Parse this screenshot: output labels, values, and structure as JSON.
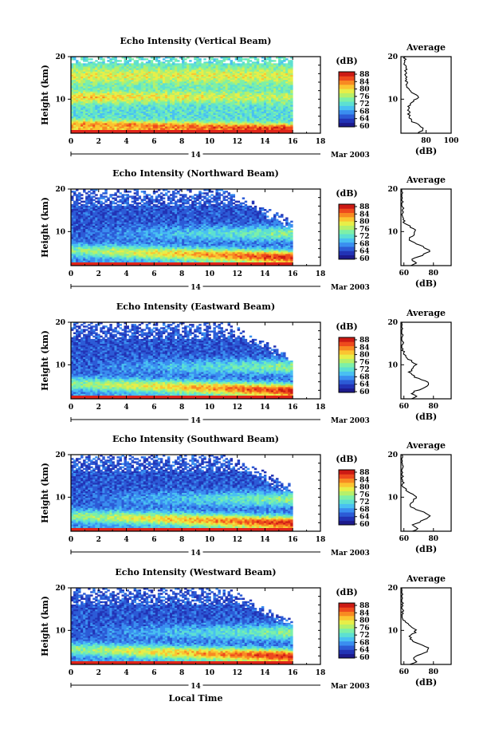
{
  "palette": [
    "#1d1a8c",
    "#2233b5",
    "#2c5bd6",
    "#3a8ef0",
    "#49c0f2",
    "#5de0d2",
    "#7df0a8",
    "#b6f06a",
    "#e8ee48",
    "#fbc531",
    "#f88a22",
    "#ee4a1d",
    "#cc1a14"
  ],
  "x_axis": {
    "ticks": [
      "0",
      "2",
      "4",
      "6",
      "8",
      "10",
      "12",
      "14",
      "16",
      "18"
    ],
    "date_marker": "14",
    "month_year": "Mar 2003",
    "label": "Local Time"
  },
  "colorbar": {
    "unit": "(dB)"
  },
  "chart_data": [
    {
      "type": "heatmap",
      "title": "Echo Intensity (Vertical Beam)",
      "ylabel": "Height (km)",
      "xlim": [
        0,
        18
      ],
      "ylim": [
        2,
        20
      ],
      "yticks": [
        "20",
        "10"
      ],
      "data_end_hour": 16,
      "colorbar": {
        "range": [
          60,
          88
        ],
        "ticks": [
          "88",
          "84",
          "80",
          "76",
          "72",
          "68",
          "64",
          "60"
        ]
      },
      "average_profile": {
        "title": "Average",
        "xlabel": "(dB)",
        "xticks": [
          "80",
          "100"
        ],
        "xlim": [
          60,
          100
        ],
        "yticks": [
          "20",
          "10"
        ]
      }
    },
    {
      "type": "heatmap",
      "title": "Echo Intensity (Northward Beam)",
      "ylabel": "Height (km)",
      "xlim": [
        0,
        18
      ],
      "ylim": [
        2,
        20
      ],
      "yticks": [
        "20",
        "10"
      ],
      "data_end_hour": 16,
      "colorbar": {
        "range": [
          60,
          88
        ],
        "ticks": [
          "88",
          "84",
          "80",
          "76",
          "72",
          "68",
          "64",
          "60"
        ]
      },
      "average_profile": {
        "title": "Average",
        "xlabel": "(dB)",
        "xticks": [
          "60",
          "80"
        ],
        "xlim": [
          58,
          92
        ],
        "yticks": [
          "20",
          "10"
        ]
      }
    },
    {
      "type": "heatmap",
      "title": "Echo Intensity (Eastward Beam)",
      "ylabel": "Height (km)",
      "xlim": [
        0,
        18
      ],
      "ylim": [
        2,
        20
      ],
      "yticks": [
        "20",
        "10"
      ],
      "data_end_hour": 16,
      "colorbar": {
        "range": [
          60,
          88
        ],
        "ticks": [
          "88",
          "84",
          "80",
          "76",
          "72",
          "68",
          "64",
          "60"
        ]
      },
      "average_profile": {
        "title": "Average",
        "xlabel": "(dB)",
        "xticks": [
          "60",
          "80"
        ],
        "xlim": [
          58,
          92
        ],
        "yticks": [
          "20",
          "10"
        ]
      }
    },
    {
      "type": "heatmap",
      "title": "Echo Intensity (Southward Beam)",
      "ylabel": "Height (km)",
      "xlim": [
        0,
        18
      ],
      "ylim": [
        2,
        20
      ],
      "yticks": [
        "20",
        "10"
      ],
      "data_end_hour": 16,
      "colorbar": {
        "range": [
          60,
          88
        ],
        "ticks": [
          "88",
          "84",
          "80",
          "76",
          "72",
          "68",
          "64",
          "60"
        ]
      },
      "average_profile": {
        "title": "Average",
        "xlabel": "(dB)",
        "xticks": [
          "60",
          "80"
        ],
        "xlim": [
          58,
          92
        ],
        "yticks": [
          "20",
          "10"
        ]
      }
    },
    {
      "type": "heatmap",
      "title": "Echo Intensity (Westward Beam)",
      "ylabel": "Height (km)",
      "xlim": [
        0,
        18
      ],
      "ylim": [
        2,
        20
      ],
      "yticks": [
        "20",
        "10"
      ],
      "data_end_hour": 16,
      "colorbar": {
        "range": [
          60,
          88
        ],
        "ticks": [
          "88",
          "84",
          "80",
          "76",
          "72",
          "68",
          "64",
          "60"
        ]
      },
      "average_profile": {
        "title": "Average",
        "xlabel": "(dB)",
        "xticks": [
          "60",
          "80"
        ],
        "xlim": [
          58,
          92
        ],
        "yticks": [
          "20",
          "10"
        ]
      }
    }
  ]
}
